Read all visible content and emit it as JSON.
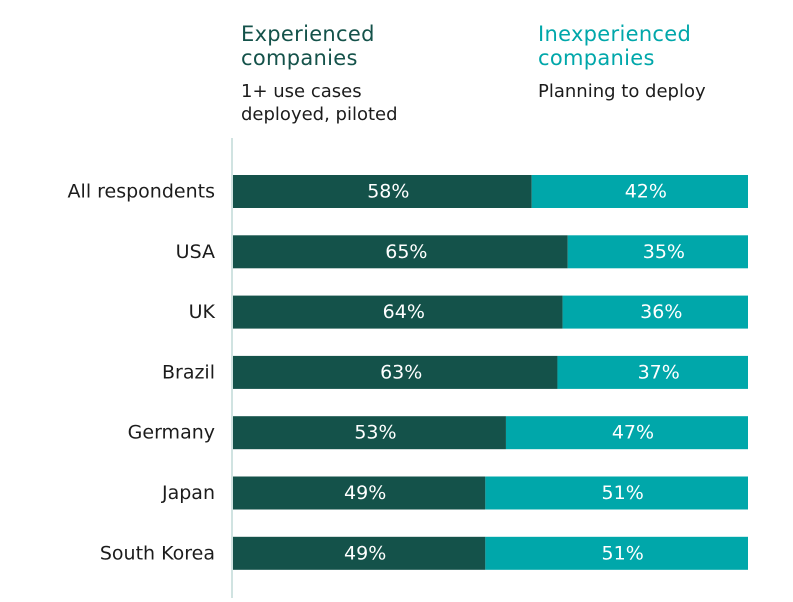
{
  "legend": {
    "experienced": {
      "title": "Experienced\ncompanies",
      "subtitle": "1+ use cases\ndeployed, piloted"
    },
    "inexperienced": {
      "title": "Inexperienced\ncompanies",
      "subtitle": "Planning to deploy"
    }
  },
  "colors": {
    "experienced": "#14524a",
    "inexperienced": "#00a7aa",
    "axis": "#d0e3e1"
  },
  "chart_data": {
    "type": "bar",
    "orientation": "horizontal",
    "stacked": true,
    "categories": [
      "All respondents",
      "USA",
      "UK",
      "Brazil",
      "Germany",
      "Japan",
      "South Korea"
    ],
    "series": [
      {
        "name": "Experienced companies",
        "values": [
          58,
          65,
          64,
          63,
          53,
          49,
          49
        ]
      },
      {
        "name": "Inexperienced companies",
        "values": [
          42,
          35,
          36,
          37,
          47,
          51,
          51
        ]
      }
    ],
    "value_suffix": "%",
    "xlim": [
      0,
      100
    ],
    "grid": false,
    "legend_position": "top"
  }
}
